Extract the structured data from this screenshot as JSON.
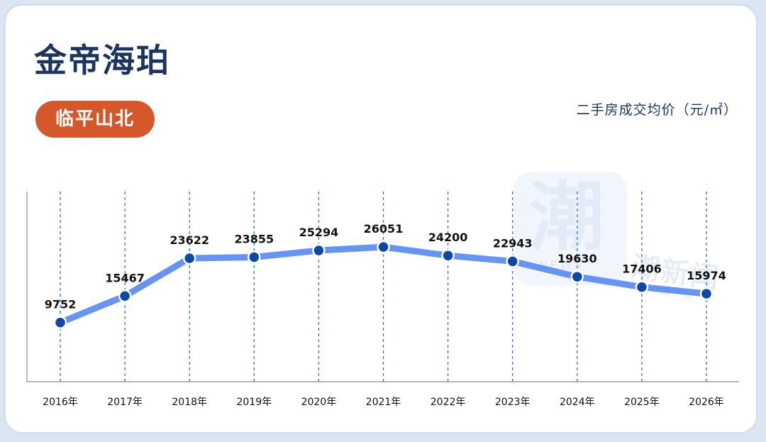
{
  "header": {
    "title": "金帝海珀",
    "area": "临平山北",
    "metric": "二手房成交均价（元/㎡）"
  },
  "watermark": {
    "glyph": "潮",
    "news": "NEWS",
    "brand": "潮新闻",
    "slogan": "潮闻天下"
  },
  "chart_data": {
    "type": "line",
    "title": "",
    "xlabel": "",
    "ylabel": "二手房成交均价（元/㎡）",
    "categories": [
      "2016年",
      "2017年",
      "2018年",
      "2019年",
      "2020年",
      "2021年",
      "2022年",
      "2023年",
      "2024年",
      "2025年",
      "2026年"
    ],
    "values": [
      9752,
      15467,
      23622,
      23855,
      25294,
      26051,
      24200,
      22943,
      19630,
      17406,
      15974
    ],
    "ylim": [
      -3000,
      38000
    ],
    "grid": "vertical dashed",
    "line_color": "#6594f4",
    "marker_color": "#0e48a6",
    "axis_color": "#8d8d8d",
    "label_color": "#111111"
  }
}
